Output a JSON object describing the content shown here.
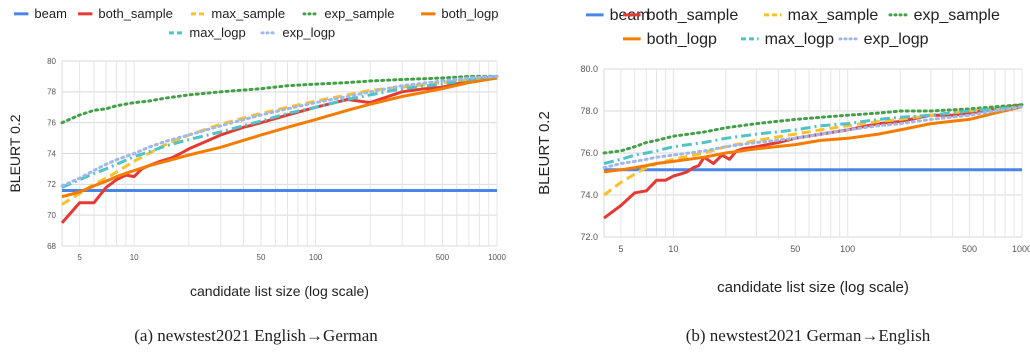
{
  "colors": {
    "beam": "#4a86e8",
    "both_sample": "#e53935",
    "max_sample": "#fbc02d",
    "exp_sample": "#43a047",
    "both_logp": "#f57c00",
    "max_logp": "#4fc3c7",
    "exp_logp": "#9fb8ec"
  },
  "chart_data": [
    {
      "type": "line",
      "caption": "(a)  newstest2021 English→German",
      "xlabel": "candidate list size (log scale)",
      "ylabel": "BLEURT 0.2",
      "x_scale": "log",
      "xlim": [
        4,
        1000
      ],
      "ylim": [
        68,
        80
      ],
      "xticks": [
        "5",
        "10",
        "50",
        "100",
        "500",
        "1000"
      ],
      "yticks": [
        "68",
        "70",
        "72",
        "74",
        "76",
        "78",
        "80"
      ],
      "grid": true,
      "legend": "top",
      "series": [
        {
          "name": "beam",
          "style": "solid",
          "points": [
            [
              4,
              71.6
            ],
            [
              1000,
              71.6
            ]
          ]
        },
        {
          "name": "both_sample",
          "style": "solid",
          "points": [
            [
              4,
              69.5
            ],
            [
              5,
              70.8
            ],
            [
              6,
              70.8
            ],
            [
              7,
              71.8
            ],
            [
              8,
              72.3
            ],
            [
              9,
              72.6
            ],
            [
              10,
              72.5
            ],
            [
              11,
              73.0
            ],
            [
              12,
              73.2
            ],
            [
              14,
              73.5
            ],
            [
              16,
              73.7
            ],
            [
              18,
              74.0
            ],
            [
              20,
              74.3
            ],
            [
              25,
              74.8
            ],
            [
              30,
              75.2
            ],
            [
              40,
              75.7
            ],
            [
              50,
              76.0
            ],
            [
              70,
              76.5
            ],
            [
              100,
              77.0
            ],
            [
              150,
              77.5
            ],
            [
              200,
              77.3
            ],
            [
              300,
              78.0
            ],
            [
              400,
              78.2
            ],
            [
              500,
              78.3
            ],
            [
              700,
              78.7
            ],
            [
              1000,
              78.9
            ]
          ]
        },
        {
          "name": "max_sample",
          "style": "dashed",
          "points": [
            [
              4,
              70.7
            ],
            [
              5,
              71.4
            ],
            [
              6,
              72.0
            ],
            [
              7,
              72.4
            ],
            [
              8,
              72.8
            ],
            [
              10,
              73.5
            ],
            [
              12,
              74.0
            ],
            [
              15,
              74.6
            ],
            [
              20,
              75.2
            ],
            [
              30,
              75.9
            ],
            [
              50,
              76.6
            ],
            [
              70,
              77.0
            ],
            [
              100,
              77.4
            ],
            [
              150,
              77.8
            ],
            [
              200,
              78.1
            ],
            [
              300,
              78.3
            ],
            [
              500,
              78.6
            ],
            [
              700,
              78.8
            ],
            [
              1000,
              79.0
            ]
          ]
        },
        {
          "name": "exp_sample",
          "style": "dotted",
          "points": [
            [
              4,
              76.0
            ],
            [
              5,
              76.5
            ],
            [
              6,
              76.8
            ],
            [
              7,
              76.9
            ],
            [
              8,
              77.1
            ],
            [
              10,
              77.3
            ],
            [
              12,
              77.4
            ],
            [
              15,
              77.6
            ],
            [
              20,
              77.8
            ],
            [
              30,
              78.0
            ],
            [
              50,
              78.2
            ],
            [
              70,
              78.4
            ],
            [
              100,
              78.5
            ],
            [
              150,
              78.6
            ],
            [
              200,
              78.7
            ],
            [
              300,
              78.8
            ],
            [
              500,
              78.9
            ],
            [
              700,
              79.0
            ],
            [
              1000,
              79.0
            ]
          ]
        },
        {
          "name": "both_logp",
          "style": "solid",
          "points": [
            [
              4,
              71.2
            ],
            [
              5,
              71.5
            ],
            [
              6,
              71.9
            ],
            [
              7,
              72.2
            ],
            [
              8,
              72.5
            ],
            [
              10,
              72.9
            ],
            [
              12,
              73.2
            ],
            [
              15,
              73.5
            ],
            [
              20,
              73.9
            ],
            [
              30,
              74.4
            ],
            [
              50,
              75.2
            ],
            [
              70,
              75.7
            ],
            [
              100,
              76.2
            ],
            [
              150,
              76.8
            ],
            [
              200,
              77.2
            ],
            [
              300,
              77.7
            ],
            [
              500,
              78.2
            ],
            [
              700,
              78.6
            ],
            [
              1000,
              78.9
            ]
          ]
        },
        {
          "name": "max_logp",
          "style": "dashdot",
          "points": [
            [
              4,
              71.8
            ],
            [
              5,
              72.3
            ],
            [
              6,
              72.7
            ],
            [
              7,
              73.0
            ],
            [
              8,
              73.3
            ],
            [
              10,
              73.8
            ],
            [
              12,
              74.1
            ],
            [
              15,
              74.5
            ],
            [
              20,
              74.9
            ],
            [
              30,
              75.4
            ],
            [
              50,
              76.1
            ],
            [
              70,
              76.6
            ],
            [
              100,
              77.0
            ],
            [
              150,
              77.5
            ],
            [
              200,
              77.8
            ],
            [
              300,
              78.2
            ],
            [
              500,
              78.5
            ],
            [
              700,
              78.8
            ],
            [
              1000,
              79.0
            ]
          ]
        },
        {
          "name": "exp_logp",
          "style": "dotted",
          "points": [
            [
              4,
              71.9
            ],
            [
              5,
              72.4
            ],
            [
              6,
              72.9
            ],
            [
              7,
              73.3
            ],
            [
              8,
              73.6
            ],
            [
              10,
              74.0
            ],
            [
              12,
              74.4
            ],
            [
              15,
              74.8
            ],
            [
              20,
              75.2
            ],
            [
              30,
              75.8
            ],
            [
              50,
              76.5
            ],
            [
              70,
              76.9
            ],
            [
              100,
              77.3
            ],
            [
              150,
              77.7
            ],
            [
              200,
              78.0
            ],
            [
              300,
              78.4
            ],
            [
              500,
              78.7
            ],
            [
              700,
              78.9
            ],
            [
              1000,
              79.0
            ]
          ]
        }
      ]
    },
    {
      "type": "line",
      "caption": "(b)  newstest2021 German→English",
      "xlabel": "candidate list size (log scale)",
      "ylabel": "BLEURT 0.2",
      "x_scale": "log",
      "xlim": [
        4,
        1000
      ],
      "ylim": [
        72,
        80
      ],
      "xticks": [
        "5",
        "10",
        "50",
        "100",
        "500",
        "1000"
      ],
      "yticks": [
        "72.0",
        "74.0",
        "76.0",
        "78.0",
        "80.0"
      ],
      "grid": true,
      "legend": "top",
      "series": [
        {
          "name": "beam",
          "style": "solid",
          "points": [
            [
              4,
              75.2
            ],
            [
              1000,
              75.2
            ]
          ]
        },
        {
          "name": "both_sample",
          "style": "solid",
          "points": [
            [
              4,
              72.9
            ],
            [
              5,
              73.5
            ],
            [
              6,
              74.1
            ],
            [
              7,
              74.2
            ],
            [
              8,
              74.7
            ],
            [
              9,
              74.7
            ],
            [
              10,
              74.9
            ],
            [
              11,
              75.0
            ],
            [
              12,
              75.1
            ],
            [
              13,
              75.3
            ],
            [
              14,
              75.4
            ],
            [
              15,
              75.8
            ],
            [
              17,
              75.5
            ],
            [
              19,
              75.9
            ],
            [
              21,
              75.7
            ],
            [
              23,
              76.1
            ],
            [
              25,
              76.2
            ],
            [
              30,
              76.3
            ],
            [
              40,
              76.5
            ],
            [
              50,
              76.7
            ],
            [
              70,
              76.9
            ],
            [
              100,
              77.1
            ],
            [
              150,
              77.4
            ],
            [
              200,
              77.5
            ],
            [
              300,
              77.8
            ],
            [
              400,
              77.8
            ],
            [
              500,
              77.9
            ],
            [
              700,
              78.1
            ],
            [
              1000,
              78.3
            ]
          ]
        },
        {
          "name": "max_sample",
          "style": "dashed",
          "points": [
            [
              4,
              74.0
            ],
            [
              5,
              74.6
            ],
            [
              6,
              75.0
            ],
            [
              7,
              75.3
            ],
            [
              8,
              75.5
            ],
            [
              10,
              75.7
            ],
            [
              15,
              76.0
            ],
            [
              20,
              76.3
            ],
            [
              30,
              76.6
            ],
            [
              50,
              76.9
            ],
            [
              70,
              77.1
            ],
            [
              100,
              77.3
            ],
            [
              150,
              77.5
            ],
            [
              200,
              77.6
            ],
            [
              300,
              77.8
            ],
            [
              500,
              78.0
            ],
            [
              700,
              78.1
            ],
            [
              1000,
              78.2
            ]
          ]
        },
        {
          "name": "exp_sample",
          "style": "dotted",
          "points": [
            [
              4,
              76.0
            ],
            [
              5,
              76.1
            ],
            [
              6,
              76.3
            ],
            [
              7,
              76.5
            ],
            [
              8,
              76.6
            ],
            [
              10,
              76.8
            ],
            [
              15,
              77.0
            ],
            [
              20,
              77.2
            ],
            [
              30,
              77.4
            ],
            [
              50,
              77.6
            ],
            [
              70,
              77.7
            ],
            [
              100,
              77.8
            ],
            [
              150,
              77.9
            ],
            [
              200,
              78.0
            ],
            [
              300,
              78.0
            ],
            [
              500,
              78.1
            ],
            [
              700,
              78.2
            ],
            [
              1000,
              78.3
            ]
          ]
        },
        {
          "name": "both_logp",
          "style": "solid",
          "points": [
            [
              4,
              75.1
            ],
            [
              5,
              75.2
            ],
            [
              6,
              75.3
            ],
            [
              7,
              75.4
            ],
            [
              8,
              75.5
            ],
            [
              10,
              75.6
            ],
            [
              15,
              75.8
            ],
            [
              20,
              76.0
            ],
            [
              30,
              76.2
            ],
            [
              50,
              76.4
            ],
            [
              70,
              76.6
            ],
            [
              100,
              76.7
            ],
            [
              150,
              76.9
            ],
            [
              200,
              77.1
            ],
            [
              300,
              77.4
            ],
            [
              500,
              77.6
            ],
            [
              700,
              77.9
            ],
            [
              1000,
              78.2
            ]
          ]
        },
        {
          "name": "max_logp",
          "style": "dashdot",
          "points": [
            [
              4,
              75.5
            ],
            [
              5,
              75.7
            ],
            [
              6,
              75.9
            ],
            [
              7,
              76.0
            ],
            [
              8,
              76.1
            ],
            [
              10,
              76.3
            ],
            [
              15,
              76.5
            ],
            [
              20,
              76.7
            ],
            [
              30,
              76.9
            ],
            [
              50,
              77.1
            ],
            [
              70,
              77.3
            ],
            [
              100,
              77.4
            ],
            [
              150,
              77.6
            ],
            [
              200,
              77.7
            ],
            [
              300,
              77.8
            ],
            [
              500,
              78.0
            ],
            [
              700,
              78.1
            ],
            [
              1000,
              78.2
            ]
          ]
        },
        {
          "name": "exp_logp",
          "style": "dotted",
          "points": [
            [
              4,
              75.3
            ],
            [
              5,
              75.5
            ],
            [
              6,
              75.6
            ],
            [
              7,
              75.7
            ],
            [
              8,
              75.8
            ],
            [
              10,
              75.9
            ],
            [
              15,
              76.1
            ],
            [
              20,
              76.3
            ],
            [
              30,
              76.5
            ],
            [
              50,
              76.7
            ],
            [
              70,
              76.9
            ],
            [
              100,
              77.1
            ],
            [
              150,
              77.3
            ],
            [
              200,
              77.4
            ],
            [
              300,
              77.6
            ],
            [
              500,
              77.8
            ],
            [
              700,
              78.0
            ],
            [
              1000,
              78.2
            ]
          ]
        }
      ]
    }
  ]
}
